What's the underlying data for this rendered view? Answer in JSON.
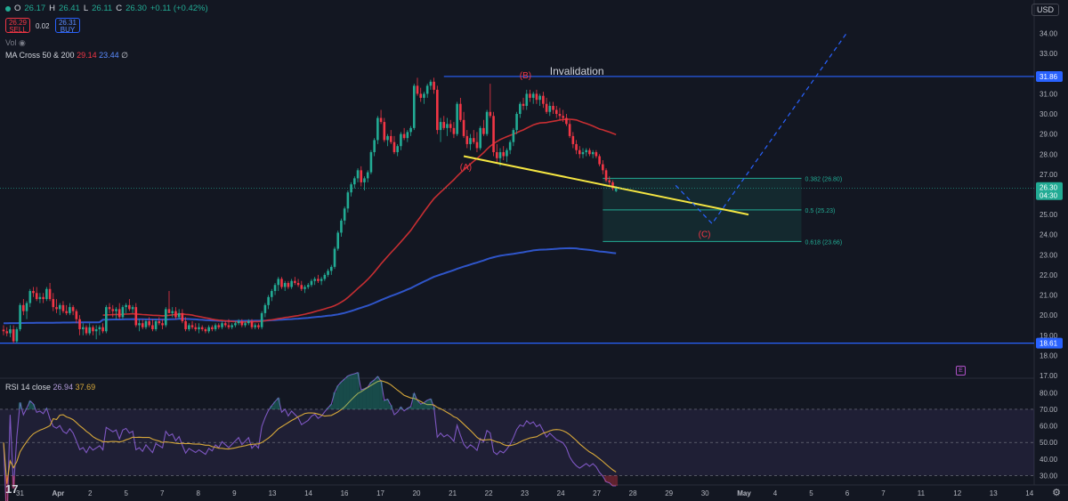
{
  "header": {
    "open_label": "O",
    "open": "26.17",
    "high_label": "H",
    "high": "26.41",
    "low_label": "L",
    "low": "26.11",
    "close_label": "C",
    "close": "26.30",
    "change": "+0.11 (+0.42%)"
  },
  "trade": {
    "sell_price": "26.29",
    "sell_label": "SELL",
    "spread": "0.02",
    "buy_price": "26.31",
    "buy_label": "BUY"
  },
  "volume_label": "Vol",
  "indicators": {
    "ma_label": "MA Cross 50 & 200",
    "ma50_value": "29.14",
    "ma200_value": "23.44",
    "rsi_label": "RSI 14 close",
    "rsi_value": "26.94",
    "rsi_ma_value": "37.69"
  },
  "currency": "USD",
  "earnings_marker": "E",
  "tv_logo": "17",
  "colors": {
    "background": "#131722",
    "up": "#22ab94",
    "down": "#f23645",
    "ma50": "#c72e32",
    "ma200": "#2f55c9",
    "trendline": "#f5e642",
    "projection": "#2962ff",
    "rsi": "#7e57c2",
    "rsi_ma": "#d7a83a",
    "wave_label": "#f23645"
  },
  "chart_data": {
    "type": "candlestick",
    "price_axis": {
      "ticks": [
        "34.00",
        "33.00",
        "32.00",
        "31.00",
        "30.00",
        "29.00",
        "28.00",
        "27.00",
        "26.00",
        "25.00",
        "24.00",
        "23.00",
        "22.00",
        "21.00",
        "20.00",
        "19.00",
        "18.00",
        "17.00"
      ],
      "range": [
        17.0,
        34.6
      ]
    },
    "x_axis": {
      "labels": [
        "31",
        "Apr",
        "2",
        "5",
        "7",
        "8",
        "9",
        "13",
        "14",
        "16",
        "17",
        "20",
        "21",
        "22",
        "23",
        "24",
        "27",
        "28",
        "29",
        "30",
        "May",
        "4",
        "5",
        "6",
        "7",
        "11",
        "12",
        "13",
        "14"
      ]
    },
    "last_price": {
      "value": "26.30",
      "countdown": "04:30"
    },
    "levels": [
      {
        "label": "Invalidation",
        "value": 31.86,
        "badge": "31.86"
      },
      {
        "value": 18.61,
        "badge": "18.61"
      }
    ],
    "fibonacci": [
      {
        "ratio": "0.382",
        "value": 26.8,
        "label": "0.382 (26.80)"
      },
      {
        "ratio": "0.5",
        "value": 25.23,
        "label": "0.5 (25.23)"
      },
      {
        "ratio": "0.618",
        "value": 23.66,
        "label": "0.618 (23.66)"
      }
    ],
    "wave_labels": [
      {
        "label": "(A)",
        "bar": 140,
        "value": 27.4
      },
      {
        "label": "(B)",
        "bar": 158,
        "value": 31.95
      },
      {
        "label": "(C)",
        "bar": 212,
        "value": 24.05
      }
    ],
    "trendline": {
      "start": {
        "bar": 139,
        "value": 27.9
      },
      "end": {
        "bar": 225,
        "value": 25.0
      }
    },
    "projection": [
      {
        "bar": 203,
        "value": 26.45
      },
      {
        "bar": 214,
        "value": 24.55
      },
      {
        "bar": 255,
        "value": 34.1
      }
    ],
    "candles_ohlc": [
      [
        19.28,
        19.5,
        19.0,
        19.2
      ],
      [
        19.2,
        19.4,
        18.95,
        19.1
      ],
      [
        19.1,
        19.5,
        18.9,
        19.3
      ],
      [
        19.3,
        19.5,
        18.6,
        18.7
      ],
      [
        18.7,
        19.4,
        18.6,
        19.3
      ],
      [
        19.3,
        20.6,
        19.2,
        20.5
      ],
      [
        20.5,
        20.8,
        20.0,
        20.2
      ],
      [
        20.2,
        20.7,
        19.8,
        20.6
      ],
      [
        20.6,
        21.3,
        20.4,
        21.2
      ],
      [
        21.2,
        21.4,
        20.9,
        21.1
      ],
      [
        21.1,
        21.4,
        20.7,
        20.8
      ],
      [
        20.8,
        21.1,
        20.6,
        20.9
      ],
      [
        20.9,
        21.1,
        20.6,
        20.8
      ],
      [
        20.8,
        21.4,
        20.7,
        21.3
      ],
      [
        21.3,
        21.6,
        20.7,
        20.8
      ],
      [
        20.8,
        21.1,
        20.2,
        20.4
      ],
      [
        20.4,
        20.8,
        20.1,
        20.3
      ],
      [
        20.3,
        20.6,
        20.0,
        20.5
      ],
      [
        20.5,
        20.7,
        20.1,
        20.2
      ],
      [
        20.2,
        20.5,
        20.0,
        20.1
      ],
      [
        20.1,
        20.6,
        20.0,
        20.4
      ],
      [
        20.4,
        20.5,
        20.0,
        20.2
      ],
      [
        20.2,
        20.3,
        19.6,
        19.8
      ],
      [
        19.8,
        20.0,
        19.0,
        19.3
      ],
      [
        19.3,
        19.6,
        19.0,
        19.4
      ],
      [
        19.4,
        19.5,
        19.0,
        19.1
      ],
      [
        19.1,
        19.6,
        19.0,
        19.4
      ],
      [
        19.4,
        19.5,
        19.0,
        19.2
      ],
      [
        19.2,
        19.5,
        18.8,
        19.3
      ],
      [
        19.3,
        19.5,
        19.0,
        19.4
      ],
      [
        19.4,
        19.6,
        19.1,
        19.2
      ],
      [
        19.2,
        20.5,
        19.1,
        20.4
      ],
      [
        20.4,
        20.6,
        20.1,
        20.3
      ],
      [
        20.3,
        20.5,
        19.9,
        20.2
      ],
      [
        20.2,
        20.4,
        19.8,
        20.3
      ],
      [
        20.3,
        20.6,
        19.8,
        19.9
      ],
      [
        19.9,
        20.5,
        19.8,
        20.4
      ],
      [
        20.4,
        20.6,
        20.1,
        20.5
      ],
      [
        20.5,
        20.8,
        20.2,
        20.3
      ],
      [
        20.3,
        20.5,
        20.1,
        20.4
      ],
      [
        20.4,
        20.6,
        19.4,
        19.5
      ],
      [
        19.5,
        19.8,
        19.2,
        19.6
      ],
      [
        19.6,
        19.8,
        19.3,
        19.4
      ],
      [
        19.4,
        19.8,
        19.3,
        19.7
      ],
      [
        19.7,
        19.9,
        19.4,
        19.5
      ],
      [
        19.5,
        19.8,
        19.2,
        19.3
      ],
      [
        19.3,
        19.8,
        19.2,
        19.7
      ],
      [
        19.7,
        19.9,
        19.5,
        19.6
      ],
      [
        19.6,
        19.8,
        19.3,
        19.5
      ],
      [
        19.5,
        20.4,
        19.4,
        20.3
      ],
      [
        20.3,
        21.2,
        20.1,
        20.1
      ],
      [
        20.1,
        20.4,
        19.9,
        20.2
      ],
      [
        20.2,
        20.4,
        19.8,
        19.9
      ],
      [
        19.9,
        20.3,
        19.8,
        20.1
      ],
      [
        20.1,
        20.3,
        19.6,
        19.7
      ],
      [
        19.7,
        19.9,
        19.2,
        19.3
      ],
      [
        19.3,
        19.6,
        19.2,
        19.5
      ],
      [
        19.5,
        19.7,
        19.3,
        19.4
      ],
      [
        19.4,
        19.6,
        19.2,
        19.3
      ],
      [
        19.3,
        19.6,
        19.1,
        19.4
      ],
      [
        19.4,
        19.5,
        19.2,
        19.3
      ],
      [
        19.3,
        19.4,
        19.1,
        19.2
      ],
      [
        19.2,
        19.5,
        19.1,
        19.4
      ],
      [
        19.4,
        19.5,
        19.2,
        19.3
      ],
      [
        19.3,
        19.6,
        19.2,
        19.5
      ],
      [
        19.5,
        19.6,
        19.3,
        19.4
      ],
      [
        19.4,
        19.7,
        19.3,
        19.6
      ],
      [
        19.6,
        19.7,
        19.4,
        19.5
      ],
      [
        19.5,
        19.8,
        19.3,
        19.4
      ],
      [
        19.4,
        19.6,
        19.3,
        19.5
      ],
      [
        19.5,
        19.7,
        19.4,
        19.6
      ],
      [
        19.6,
        19.8,
        19.5,
        19.7
      ],
      [
        19.7,
        19.8,
        19.4,
        19.5
      ],
      [
        19.5,
        19.7,
        19.4,
        19.6
      ],
      [
        19.6,
        19.8,
        19.5,
        19.7
      ],
      [
        19.7,
        19.8,
        19.3,
        19.4
      ],
      [
        19.4,
        19.6,
        19.3,
        19.5
      ],
      [
        19.5,
        19.6,
        19.3,
        19.4
      ],
      [
        19.4,
        20.2,
        19.3,
        20.1
      ],
      [
        20.1,
        20.6,
        19.9,
        20.5
      ],
      [
        20.5,
        21.0,
        20.3,
        20.9
      ],
      [
        20.9,
        21.3,
        20.7,
        21.2
      ],
      [
        21.2,
        21.6,
        21.0,
        21.5
      ],
      [
        21.5,
        21.9,
        21.2,
        21.8
      ],
      [
        21.8,
        21.9,
        21.3,
        21.4
      ],
      [
        21.4,
        21.7,
        21.2,
        21.6
      ],
      [
        21.6,
        21.7,
        21.3,
        21.4
      ],
      [
        21.4,
        21.8,
        21.3,
        21.7
      ],
      [
        21.7,
        21.9,
        21.5,
        21.6
      ],
      [
        21.6,
        21.8,
        21.4,
        21.5
      ],
      [
        21.5,
        21.7,
        21.2,
        21.3
      ],
      [
        21.3,
        21.5,
        21.1,
        21.4
      ],
      [
        21.4,
        21.6,
        21.3,
        21.5
      ],
      [
        21.5,
        21.8,
        21.4,
        21.7
      ],
      [
        21.7,
        21.9,
        21.5,
        21.8
      ],
      [
        21.8,
        22.0,
        21.6,
        21.7
      ],
      [
        21.7,
        21.9,
        21.5,
        21.8
      ],
      [
        21.8,
        22.1,
        21.7,
        22.0
      ],
      [
        22.0,
        22.3,
        21.9,
        22.2
      ],
      [
        22.2,
        22.5,
        22.0,
        22.4
      ],
      [
        22.4,
        23.4,
        22.3,
        23.3
      ],
      [
        23.3,
        24.2,
        23.2,
        24.1
      ],
      [
        24.1,
        24.8,
        23.9,
        24.7
      ],
      [
        24.7,
        25.4,
        24.5,
        25.3
      ],
      [
        25.3,
        26.2,
        25.1,
        26.1
      ],
      [
        26.1,
        26.6,
        25.9,
        26.5
      ],
      [
        26.5,
        26.9,
        26.3,
        26.8
      ],
      [
        26.8,
        27.3,
        26.6,
        27.2
      ],
      [
        27.2,
        27.4,
        26.4,
        26.6
      ],
      [
        26.6,
        26.9,
        26.2,
        26.8
      ],
      [
        26.8,
        27.2,
        26.6,
        27.1
      ],
      [
        27.1,
        28.2,
        27.0,
        28.1
      ],
      [
        28.1,
        28.8,
        27.9,
        28.7
      ],
      [
        28.7,
        29.9,
        28.5,
        29.8
      ],
      [
        29.8,
        30.2,
        29.5,
        29.6
      ],
      [
        29.6,
        29.8,
        28.6,
        28.7
      ],
      [
        28.7,
        29.0,
        28.4,
        28.9
      ],
      [
        28.9,
        29.2,
        28.5,
        28.6
      ],
      [
        28.6,
        28.9,
        28.0,
        28.1
      ],
      [
        28.1,
        28.5,
        27.9,
        28.4
      ],
      [
        28.4,
        29.1,
        28.2,
        29.0
      ],
      [
        29.0,
        29.3,
        28.7,
        28.8
      ],
      [
        28.8,
        29.2,
        28.6,
        29.1
      ],
      [
        29.1,
        29.4,
        28.9,
        29.3
      ],
      [
        29.3,
        31.5,
        29.2,
        31.4
      ],
      [
        31.4,
        31.8,
        30.9,
        31.0
      ],
      [
        31.0,
        31.3,
        30.6,
        30.8
      ],
      [
        30.8,
        31.1,
        30.5,
        31.0
      ],
      [
        31.0,
        31.5,
        30.8,
        31.4
      ],
      [
        31.4,
        31.7,
        31.2,
        31.6
      ],
      [
        31.6,
        31.8,
        31.0,
        31.2
      ],
      [
        31.2,
        31.4,
        29.0,
        29.2
      ],
      [
        29.2,
        29.8,
        28.6,
        29.6
      ],
      [
        29.6,
        29.9,
        29.2,
        29.3
      ],
      [
        29.3,
        29.8,
        28.9,
        29.5
      ],
      [
        29.5,
        29.7,
        29.1,
        29.3
      ],
      [
        29.3,
        29.6,
        28.8,
        29.0
      ],
      [
        29.0,
        30.6,
        28.9,
        30.5
      ],
      [
        30.5,
        30.8,
        29.6,
        29.7
      ],
      [
        29.7,
        30.1,
        28.8,
        28.9
      ],
      [
        28.9,
        29.2,
        28.3,
        28.5
      ],
      [
        28.5,
        29.0,
        28.2,
        28.8
      ],
      [
        28.8,
        29.2,
        28.5,
        28.6
      ],
      [
        28.6,
        29.1,
        28.1,
        28.3
      ],
      [
        28.3,
        29.4,
        28.2,
        29.3
      ],
      [
        29.3,
        29.7,
        28.9,
        29.0
      ],
      [
        29.0,
        30.2,
        28.9,
        30.1
      ],
      [
        30.1,
        31.5,
        29.8,
        29.9
      ],
      [
        29.9,
        30.1,
        27.9,
        28.1
      ],
      [
        28.1,
        28.5,
        27.6,
        27.8
      ],
      [
        27.8,
        28.3,
        27.4,
        28.1
      ],
      [
        28.1,
        28.4,
        27.7,
        27.9
      ],
      [
        27.9,
        28.3,
        27.6,
        28.2
      ],
      [
        28.2,
        28.7,
        28.0,
        28.6
      ],
      [
        28.6,
        29.3,
        28.4,
        29.2
      ],
      [
        29.2,
        30.1,
        29.0,
        30.0
      ],
      [
        30.0,
        30.6,
        29.8,
        30.5
      ],
      [
        30.5,
        30.8,
        30.2,
        30.4
      ],
      [
        30.4,
        31.2,
        30.2,
        31.0
      ],
      [
        31.0,
        31.2,
        30.6,
        30.8
      ],
      [
        30.8,
        31.1,
        30.5,
        31.0
      ],
      [
        31.0,
        31.2,
        30.5,
        30.7
      ],
      [
        30.7,
        31.0,
        30.4,
        30.9
      ],
      [
        30.9,
        31.1,
        30.3,
        30.5
      ],
      [
        30.5,
        30.8,
        30.0,
        30.1
      ],
      [
        30.1,
        30.6,
        29.9,
        30.4
      ],
      [
        30.4,
        30.6,
        30.0,
        30.2
      ],
      [
        30.2,
        30.4,
        29.8,
        30.0
      ],
      [
        30.0,
        30.3,
        29.7,
        29.9
      ],
      [
        29.9,
        30.2,
        29.6,
        29.8
      ],
      [
        29.8,
        30.0,
        29.4,
        29.5
      ],
      [
        29.5,
        29.7,
        28.8,
        28.9
      ],
      [
        28.9,
        29.1,
        28.3,
        28.5
      ],
      [
        28.5,
        28.7,
        28.0,
        28.2
      ],
      [
        28.2,
        28.4,
        27.8,
        28.0
      ],
      [
        28.0,
        28.3,
        27.8,
        28.1
      ],
      [
        28.1,
        28.3,
        27.9,
        28.2
      ],
      [
        28.2,
        28.3,
        27.9,
        28.0
      ],
      [
        28.0,
        28.2,
        27.8,
        28.1
      ],
      [
        28.1,
        28.2,
        27.8,
        27.9
      ],
      [
        27.9,
        28.0,
        27.4,
        27.5
      ],
      [
        27.5,
        27.7,
        27.0,
        27.2
      ],
      [
        27.2,
        27.3,
        26.6,
        26.7
      ],
      [
        26.7,
        26.9,
        26.4,
        26.6
      ],
      [
        26.6,
        26.7,
        26.2,
        26.3
      ],
      [
        26.17,
        26.41,
        26.11,
        26.3
      ]
    ],
    "rsi": {
      "axis_ticks": [
        "80.00",
        "70.00",
        "60.00",
        "50.00",
        "40.00",
        "30.00"
      ],
      "levels": [
        70,
        50,
        30
      ],
      "range": [
        27,
        85
      ]
    },
    "volume_shown": false
  }
}
